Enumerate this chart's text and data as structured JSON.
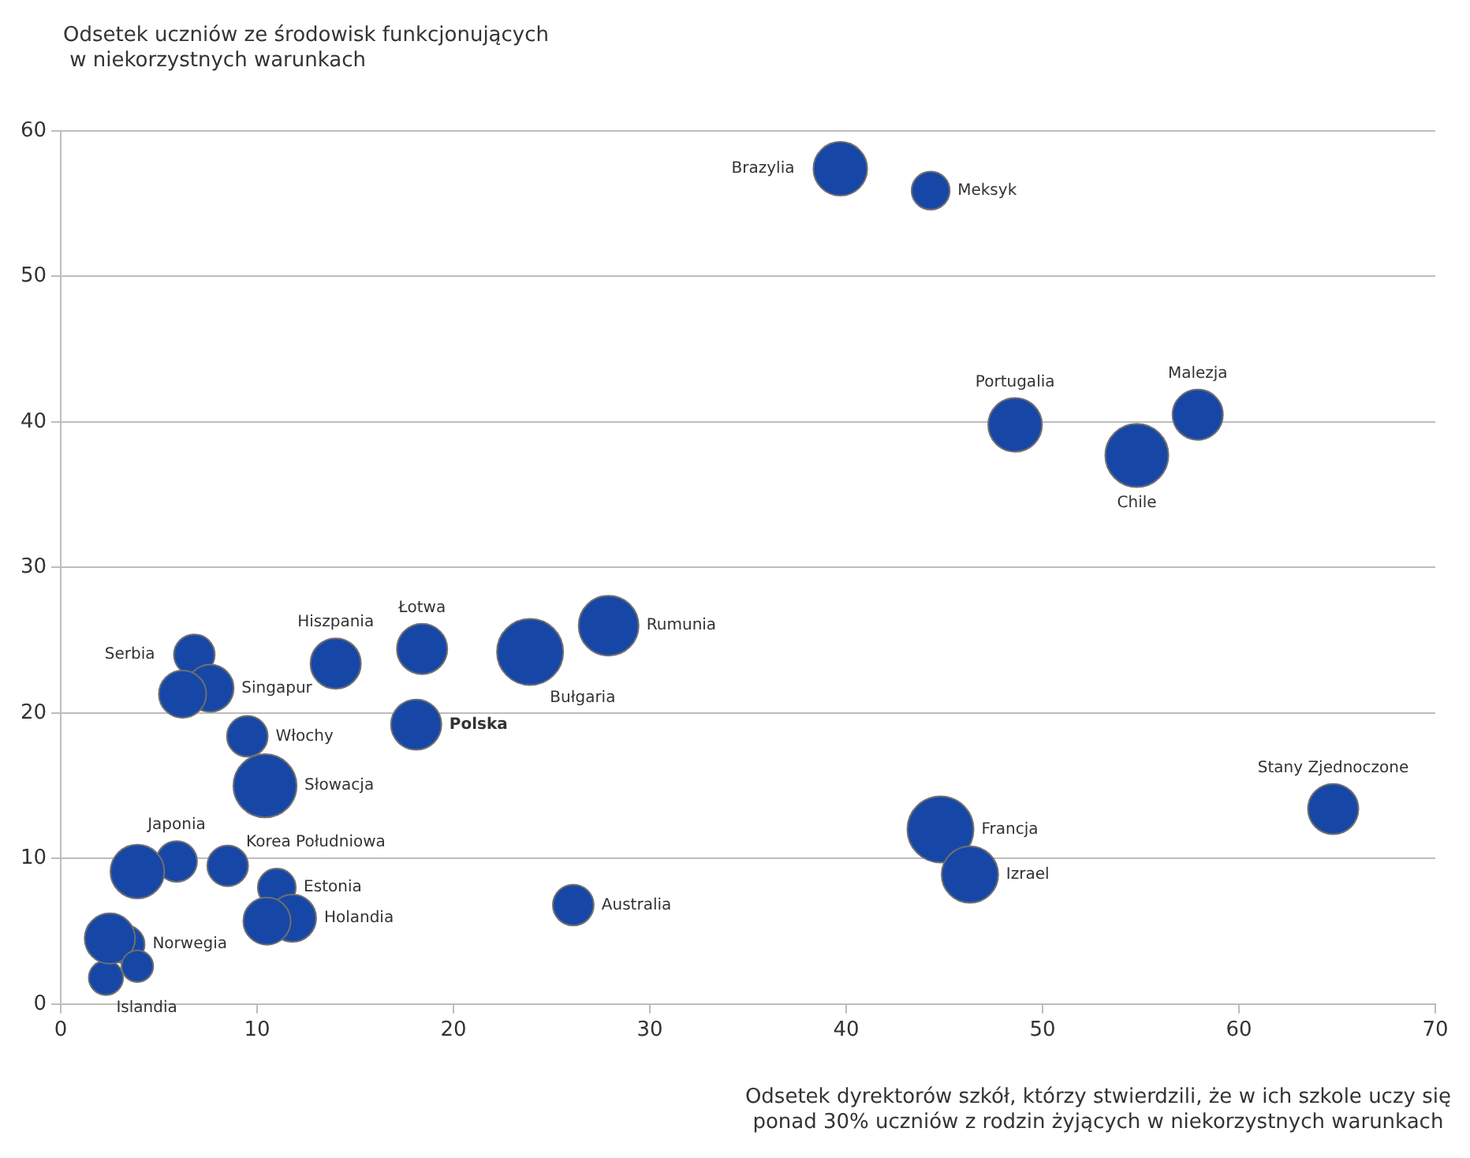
{
  "chart_data": {
    "type": "bubble",
    "xlabel": "Odsetek dyrektorów szkół, którzy stwierdzili, że w ich szkole uczy się\nponad 30% uczniów z rodzin żyjących w niekorzystnych warunkach",
    "ylabel": "Odsetek uczniów ze środowisk funkcjonujących\n w niekorzystnych warunkach",
    "x": [
      39.7,
      44.3,
      48.6,
      54.8,
      57.9,
      64.8,
      44.8,
      46.3,
      27.9,
      23.9,
      18.4,
      14.0,
      18.1,
      6.8,
      7.6,
      9.5,
      10.4,
      5.9,
      8.5,
      11.0,
      11.8,
      3.3,
      2.3,
      26.1,
      6.2,
      3.9,
      10.5,
      2.5,
      3.9
    ],
    "values": [
      57.4,
      55.9,
      39.8,
      37.7,
      40.5,
      13.4,
      12.0,
      8.9,
      26.0,
      24.2,
      24.4,
      23.4,
      19.2,
      24.0,
      21.7,
      18.4,
      15.0,
      9.8,
      9.5,
      8.0,
      5.9,
      4.1,
      1.8,
      6.8,
      21.3,
      9.1,
      5.7,
      4.5,
      2.6
    ],
    "sizes": [
      0.66,
      0.33,
      0.66,
      0.91,
      0.58,
      0.58,
      1,
      0.73,
      0.82,
      1,
      0.58,
      0.58,
      0.58,
      0.38,
      0.51,
      0.38,
      0.91,
      0.38,
      0.38,
      0.33,
      0.51,
      0.33,
      0.27,
      0.38,
      0.51,
      0.66,
      0.51,
      0.58,
      0.23
    ],
    "color": "#1747a6",
    "xlim": [
      0,
      70
    ],
    "xticks": [
      0,
      10,
      20,
      30,
      40,
      50,
      60,
      70
    ],
    "ylim": [
      0,
      60
    ],
    "yticks": [
      0,
      10,
      20,
      30,
      40,
      50,
      60
    ],
    "grid": "y",
    "legend": false,
    "annotations": [
      {
        "text": "Brazylia",
        "x": 39.7,
        "y": 57.4
      },
      {
        "text": "Meksyk",
        "x": 44.3,
        "y": 55.9
      },
      {
        "text": "Portugalia",
        "x": 48.6,
        "y": 39.8
      },
      {
        "text": "Chile",
        "x": 54.8,
        "y": 37.7
      },
      {
        "text": "Malezja",
        "x": 57.9,
        "y": 40.5
      },
      {
        "text": "Stany Zjednoczone",
        "x": 64.8,
        "y": 13.4
      },
      {
        "text": "Francja",
        "x": 44.8,
        "y": 12.0
      },
      {
        "text": "Izrael",
        "x": 46.3,
        "y": 8.9
      },
      {
        "text": "Rumunia",
        "x": 27.9,
        "y": 26.0
      },
      {
        "text": "Bułgaria",
        "x": 23.9,
        "y": 24.2
      },
      {
        "text": "Łotwa",
        "x": 18.4,
        "y": 24.4
      },
      {
        "text": "Hiszpania",
        "x": 14.0,
        "y": 23.4
      },
      {
        "text": "Polska",
        "x": 18.1,
        "y": 19.2
      },
      {
        "text": "Serbia",
        "x": 6.8,
        "y": 24.0
      },
      {
        "text": "Singapur",
        "x": 7.6,
        "y": 21.7
      },
      {
        "text": "Włochy",
        "x": 9.5,
        "y": 18.4
      },
      {
        "text": "Słowacja",
        "x": 10.4,
        "y": 15.0
      },
      {
        "text": "Japonia",
        "x": 5.9,
        "y": 9.8
      },
      {
        "text": "Korea Południowa",
        "x": 8.5,
        "y": 9.5
      },
      {
        "text": "Estonia",
        "x": 11.0,
        "y": 8.0
      },
      {
        "text": "Holandia",
        "x": 11.8,
        "y": 5.9
      },
      {
        "text": "Norwegia",
        "x": 3.3,
        "y": 4.1
      },
      {
        "text": "Islandia",
        "x": 2.3,
        "y": 1.8
      },
      {
        "text": "Australia",
        "x": 26.1,
        "y": 6.8
      }
    ]
  }
}
